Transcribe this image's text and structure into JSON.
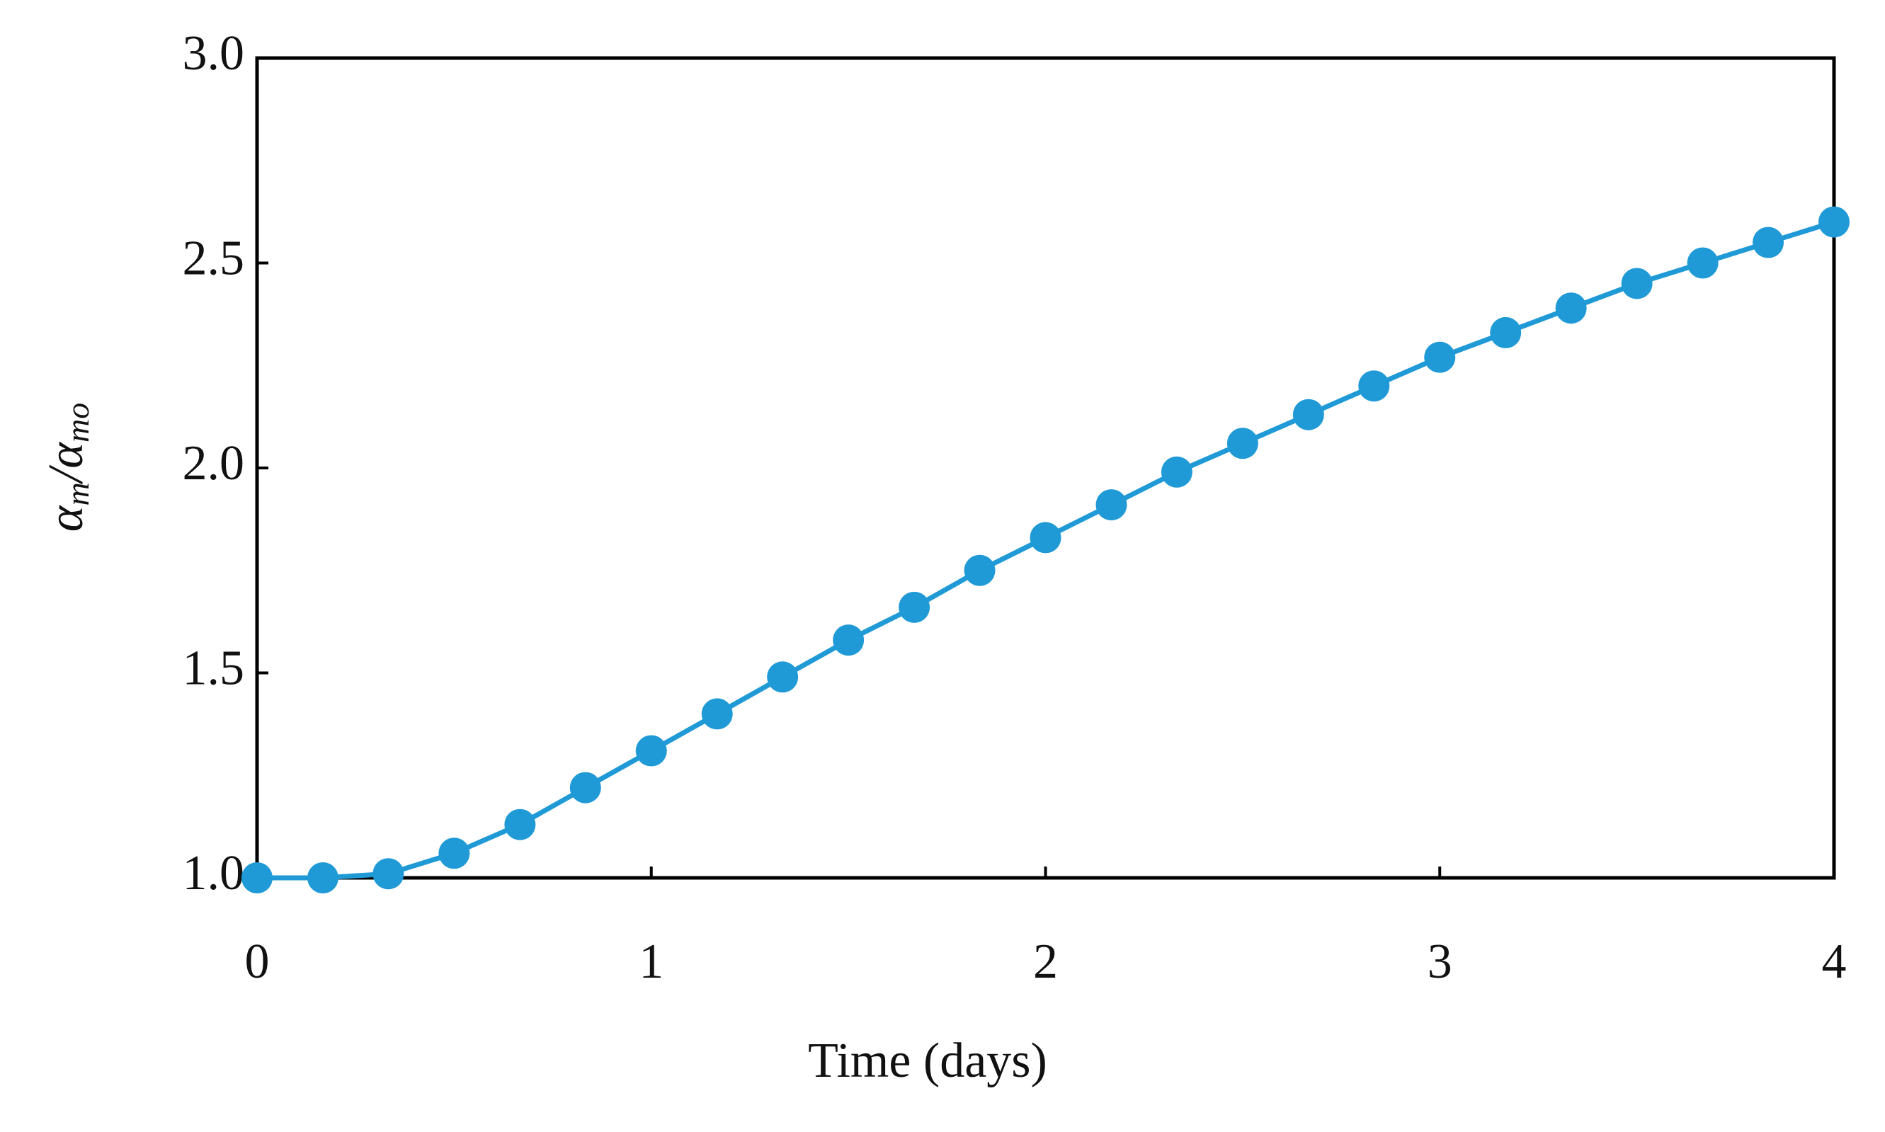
{
  "chart_data": {
    "type": "line",
    "xlabel": "Time (days)",
    "ylabel_parts": [
      "α",
      "m",
      "/α",
      "mo"
    ],
    "x": [
      0,
      0.167,
      0.333,
      0.5,
      0.667,
      0.833,
      1,
      1.167,
      1.333,
      1.5,
      1.667,
      1.833,
      2,
      2.167,
      2.333,
      2.5,
      2.667,
      2.833,
      3,
      3.167,
      3.333,
      3.5,
      3.667,
      3.833,
      4
    ],
    "series": [
      {
        "color": "#1f9ad6",
        "values": [
          1.0,
          1.0,
          1.01,
          1.06,
          1.13,
          1.22,
          1.31,
          1.4,
          1.49,
          1.58,
          1.66,
          1.75,
          1.83,
          1.91,
          1.99,
          2.06,
          2.13,
          2.2,
          2.27,
          2.33,
          2.39,
          2.45,
          2.5,
          2.55,
          2.6
        ]
      }
    ],
    "xlim": [
      0,
      4
    ],
    "xticks": [
      0,
      1,
      2,
      3,
      4
    ],
    "ylim": [
      1,
      3
    ],
    "yticks": [
      {
        "value": 1,
        "label": "1.0"
      },
      {
        "value": 1.5,
        "label": "1.5"
      },
      {
        "value": 2,
        "label": "2.0"
      },
      {
        "value": 2.5,
        "label": "2.5"
      },
      {
        "value": 3,
        "label": "3.0"
      }
    ],
    "grid": false
  }
}
